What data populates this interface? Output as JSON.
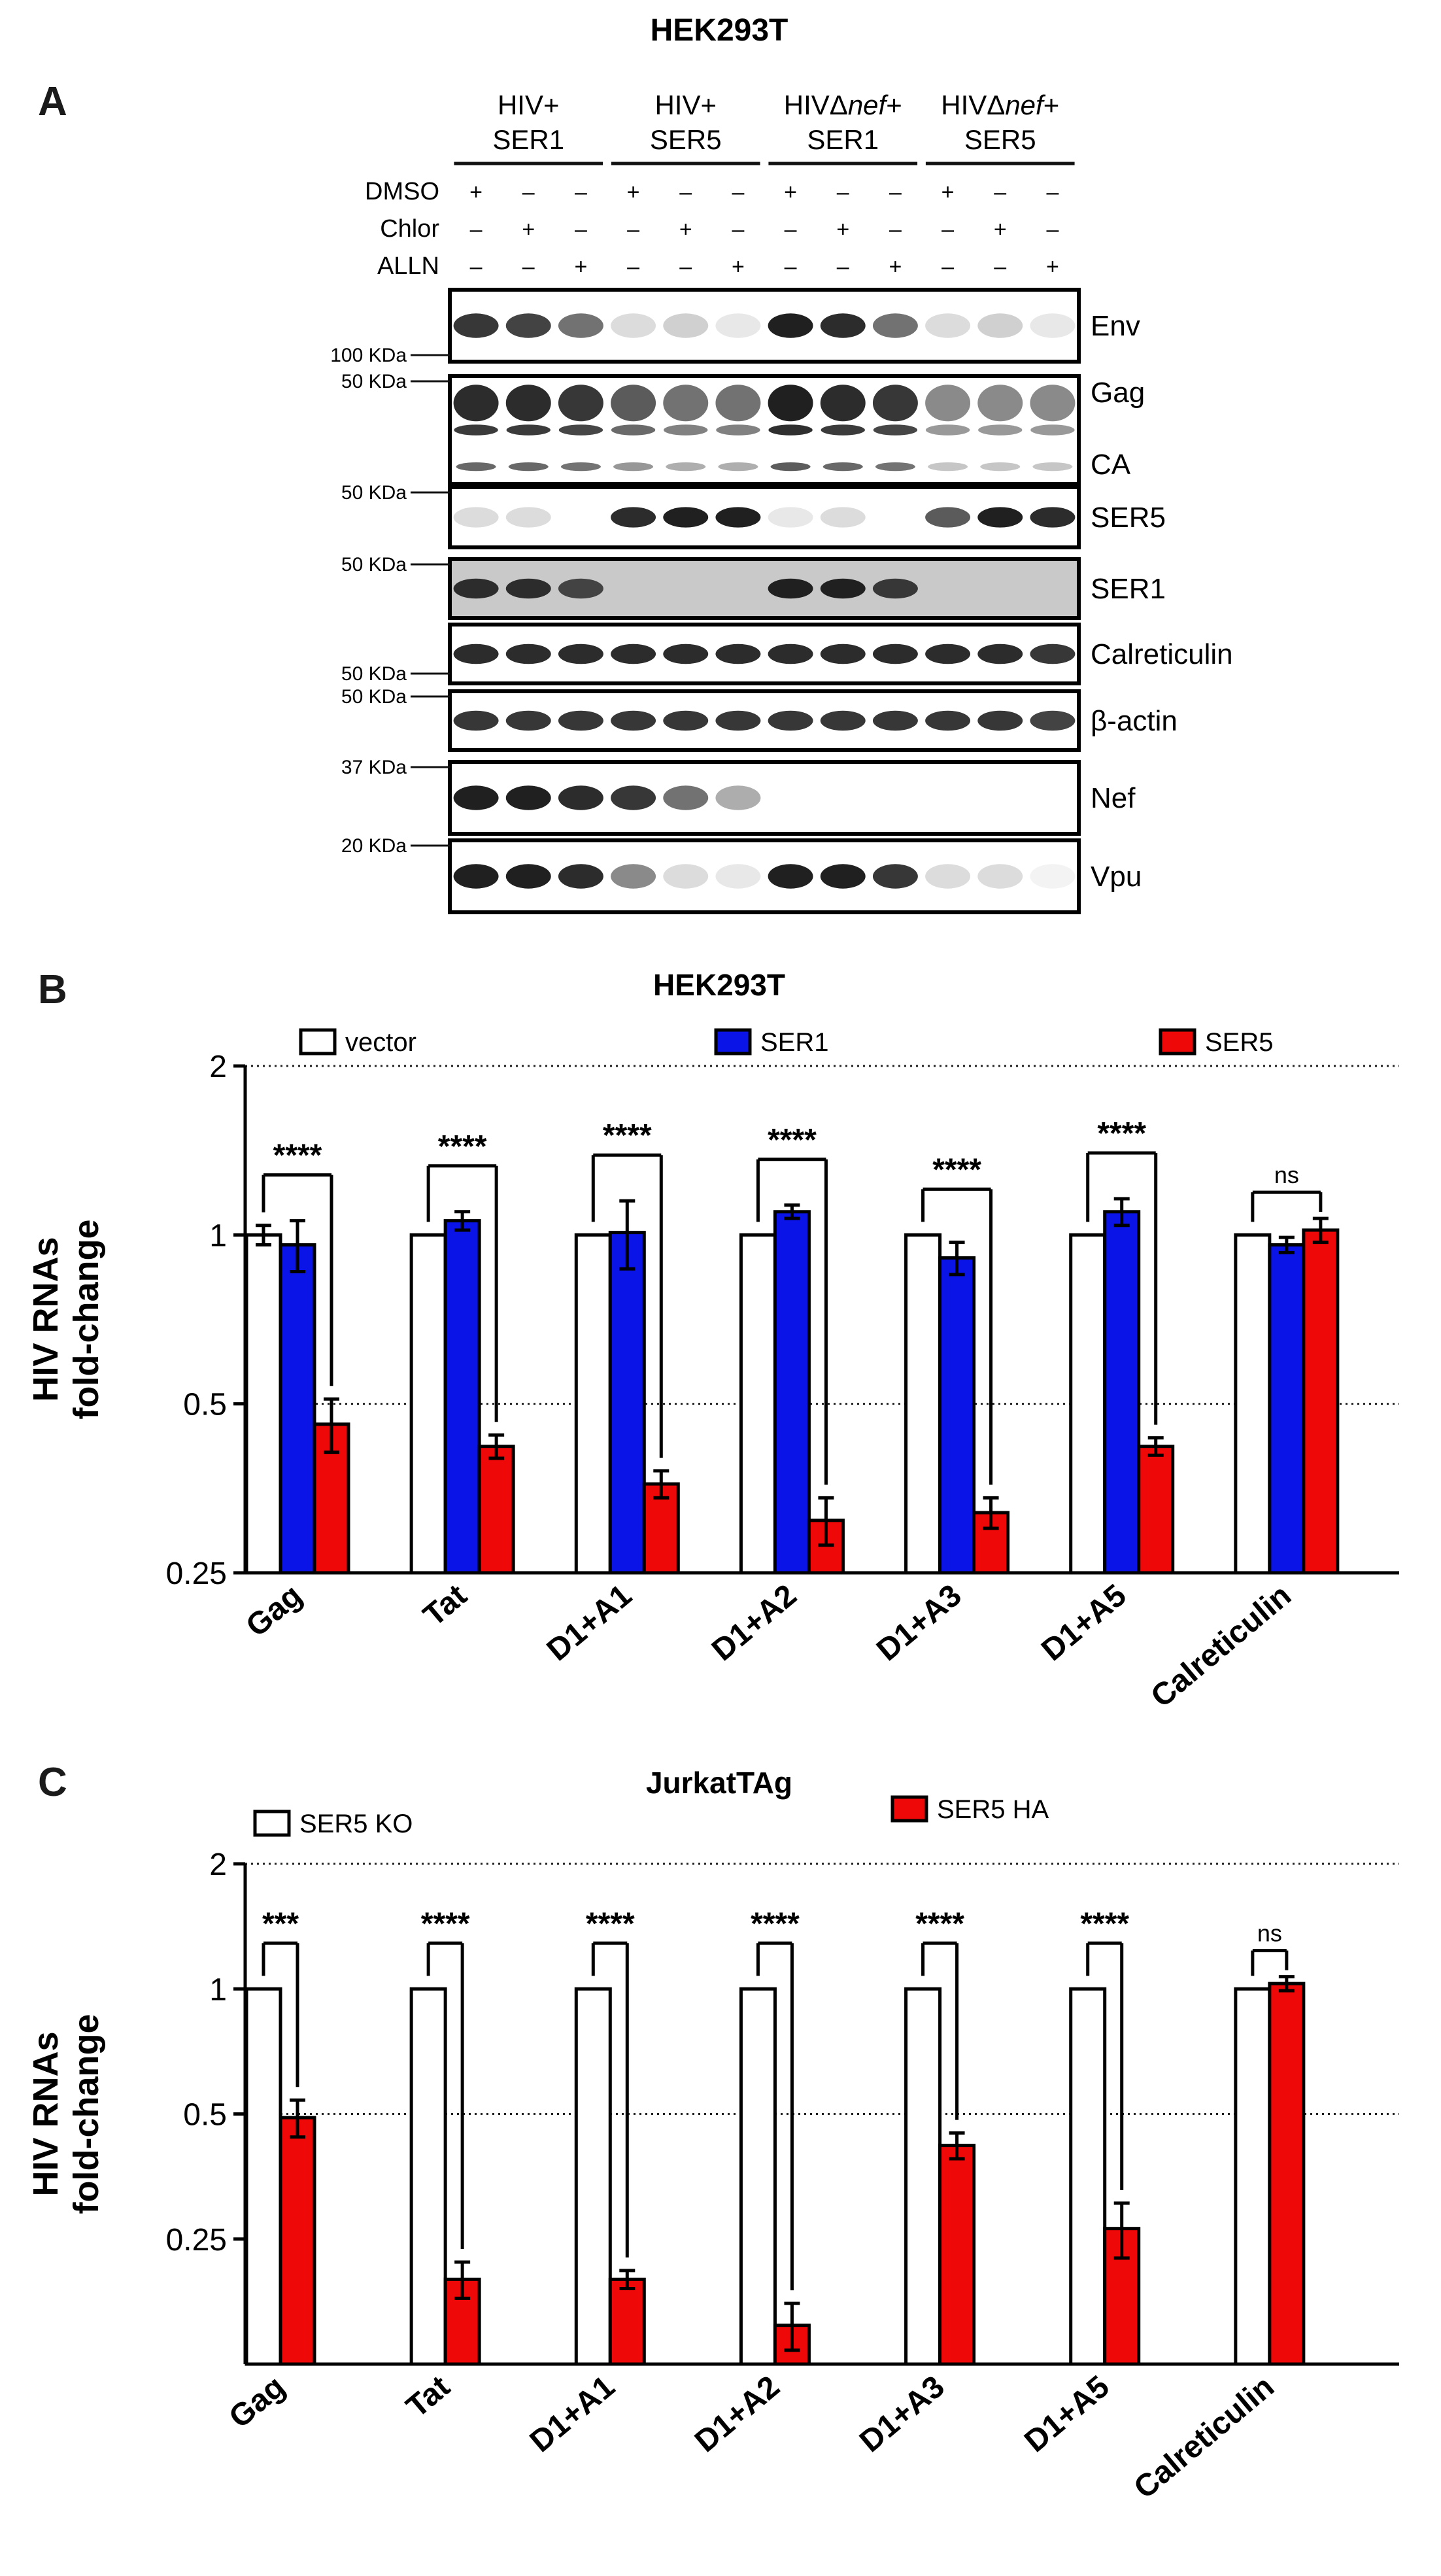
{
  "panel_a": {
    "letter": "A",
    "title": "HEK293T",
    "groups": [
      {
        "line1": "HIV+",
        "line2": "SER1",
        "italic": ""
      },
      {
        "line1": "HIV+",
        "line2": "SER5",
        "italic": ""
      },
      {
        "line1": "HIVΔ",
        "italic": "nef",
        "plus": "+",
        "line2": "SER1"
      },
      {
        "line1": "HIVΔ",
        "italic": "nef",
        "plus": "+",
        "line2": "SER5"
      }
    ],
    "treatments": [
      {
        "name": "DMSO",
        "signs": [
          "+",
          "–",
          "–",
          "+",
          "–",
          "–",
          "+",
          "–",
          "–",
          "+",
          "–",
          "–"
        ]
      },
      {
        "name": "Chlor",
        "signs": [
          "–",
          "+",
          "–",
          "–",
          "+",
          "–",
          "–",
          "+",
          "–",
          "–",
          "+",
          "–"
        ]
      },
      {
        "name": "ALLN",
        "signs": [
          "–",
          "–",
          "+",
          "–",
          "–",
          "+",
          "–",
          "–",
          "+",
          "–",
          "–",
          "+"
        ]
      }
    ],
    "blots": [
      {
        "label": "Env",
        "sub": "",
        "marker": "100 KDa",
        "intensity": [
          0.85,
          0.8,
          0.6,
          0.15,
          0.2,
          0.1,
          0.95,
          0.9,
          0.6,
          0.15,
          0.2,
          0.1
        ],
        "bg": "#ffffff"
      },
      {
        "label": "Gag",
        "sub": "CA",
        "marker": "50 KDa",
        "intensity": [
          0.9,
          0.9,
          0.85,
          0.7,
          0.6,
          0.6,
          0.95,
          0.9,
          0.85,
          0.5,
          0.5,
          0.5
        ],
        "bg": "#ffffff"
      },
      {
        "label": "SER5",
        "sub": "",
        "marker": "50 KDa",
        "intensity": [
          0.15,
          0.15,
          0.0,
          0.9,
          0.95,
          0.95,
          0.1,
          0.15,
          0.0,
          0.7,
          0.95,
          0.9
        ],
        "bg": "#ffffff"
      },
      {
        "label": "SER1",
        "sub": "",
        "marker": "50 KDa",
        "intensity": [
          0.9,
          0.9,
          0.8,
          0.0,
          0.0,
          0.0,
          0.95,
          0.95,
          0.85,
          0.0,
          0.0,
          0.0
        ],
        "bg": "#c9c9c9"
      },
      {
        "label": "Calreticulin",
        "sub": "",
        "marker": "50 KDa",
        "intensity": [
          0.9,
          0.9,
          0.9,
          0.9,
          0.9,
          0.9,
          0.9,
          0.9,
          0.9,
          0.9,
          0.9,
          0.85
        ],
        "bg": "#ffffff"
      },
      {
        "label": "β-actin",
        "sub": "",
        "marker": "50 KDa",
        "intensity": [
          0.85,
          0.85,
          0.85,
          0.85,
          0.85,
          0.85,
          0.85,
          0.85,
          0.85,
          0.85,
          0.85,
          0.8
        ],
        "bg": "#ffffff"
      },
      {
        "label": "Nef",
        "sub": "",
        "marker": "37 KDa",
        "intensity": [
          0.95,
          0.95,
          0.9,
          0.85,
          0.6,
          0.35,
          0.0,
          0.0,
          0.0,
          0.0,
          0.0,
          0.0
        ],
        "bg": "#ffffff"
      },
      {
        "label": "Vpu",
        "sub": "",
        "marker": "20 KDa",
        "intensity": [
          0.95,
          0.95,
          0.9,
          0.5,
          0.15,
          0.1,
          0.95,
          0.95,
          0.85,
          0.15,
          0.15,
          0.05
        ],
        "bg": "#ffffff"
      }
    ]
  },
  "panel_b": {
    "letter": "B",
    "title": "HEK293T",
    "ylabel_line1": "HIV RNAs",
    "ylabel_line2": "fold-change",
    "y_ticks": [
      "2",
      "1",
      "0.5",
      "0.25"
    ],
    "legend": [
      {
        "name": "vector",
        "color": "#ffffff"
      },
      {
        "name": "SER1",
        "color": "#0a14e6"
      },
      {
        "name": "SER5",
        "color": "#ef0808"
      }
    ],
    "significance": [
      "****",
      "****",
      "****",
      "****",
      "****",
      "****",
      "ns"
    ]
  },
  "panel_c": {
    "letter": "C",
    "title": "JurkatTAg",
    "ylabel_line1": "HIV RNAs",
    "ylabel_line2": "fold-change",
    "y_ticks": [
      "2",
      "1",
      "0.5",
      "0.25"
    ],
    "legend": [
      {
        "name": "SER5 KO",
        "color": "#ffffff"
      },
      {
        "name": "SER5 HA",
        "color": "#ef0808"
      }
    ],
    "significance": [
      "***",
      "****",
      "****",
      "****",
      "****",
      "****",
      "ns"
    ]
  },
  "chart_data": [
    {
      "type": "bar",
      "title": "HEK293T",
      "xlabel": "",
      "ylabel": "HIV RNAs fold-change",
      "yscale": "log2",
      "ylim": [
        0.25,
        2
      ],
      "reference_lines": [
        2,
        0.5
      ],
      "categories": [
        "Gag",
        "Tat",
        "D1+A1",
        "D1+A2",
        "D1+A3",
        "D1+A5",
        "Calreticulin"
      ],
      "series": [
        {
          "name": "vector",
          "color": "#ffffff",
          "values": [
            1.0,
            1.0,
            1.0,
            1.0,
            1.0,
            1.0,
            1.0
          ],
          "errors": [
            0.04,
            0,
            0,
            0,
            0,
            0,
            0
          ]
        },
        {
          "name": "SER1",
          "color": "#0a14e6",
          "values": [
            0.96,
            1.06,
            1.01,
            1.1,
            0.91,
            1.1,
            0.96
          ],
          "errors": [
            0.1,
            0.04,
            0.14,
            0.03,
            0.06,
            0.06,
            0.03
          ]
        },
        {
          "name": "SER5",
          "color": "#ef0808",
          "values": [
            0.46,
            0.42,
            0.36,
            0.31,
            0.32,
            0.42,
            1.02
          ],
          "errors": [
            0.05,
            0.02,
            0.02,
            0.03,
            0.02,
            0.015,
            0.05
          ]
        }
      ]
    },
    {
      "type": "bar",
      "title": "JurkatTAg",
      "xlabel": "",
      "ylabel": "HIV RNAs fold-change",
      "yscale": "log2",
      "ylim": [
        0.125,
        2
      ],
      "reference_lines": [
        2,
        0.5
      ],
      "categories": [
        "Gag",
        "Tat",
        "D1+A1",
        "D1+A2",
        "D1+A3",
        "D1+A5",
        "Calreticulin"
      ],
      "series": [
        {
          "name": "SER5 KO",
          "color": "#ffffff",
          "values": [
            1.0,
            1.0,
            1.0,
            1.0,
            1.0,
            1.0,
            1.0
          ],
          "errors": [
            0,
            0,
            0,
            0,
            0,
            0,
            0
          ]
        },
        {
          "name": "SER5 HA",
          "color": "#ef0808",
          "values": [
            0.49,
            0.2,
            0.2,
            0.155,
            0.42,
            0.265,
            1.03
          ],
          "errors": [
            0.05,
            0.02,
            0.01,
            0.02,
            0.03,
            0.04,
            0.04
          ]
        }
      ]
    }
  ]
}
